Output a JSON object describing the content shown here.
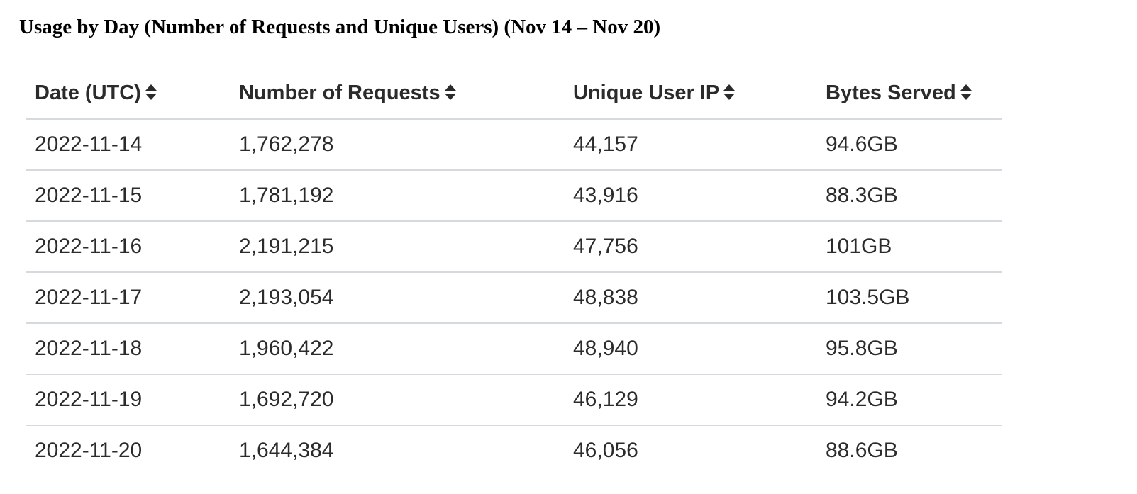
{
  "title": "Usage by Day (Number of Requests and Unique Users) (Nov 14 – Nov 20)",
  "table": {
    "headers": [
      "Date (UTC)",
      "Number of Requests",
      "Unique User IP",
      "Bytes Served"
    ],
    "sort_icon": "sort-up-down-icon",
    "rows": [
      [
        "2022-11-14",
        "1,762,278",
        "44,157",
        "94.6GB"
      ],
      [
        "2022-11-15",
        "1,781,192",
        "43,916",
        "88.3GB"
      ],
      [
        "2022-11-16",
        "2,191,215",
        "47,756",
        "101GB"
      ],
      [
        "2022-11-17",
        "2,193,054",
        "48,838",
        "103.5GB"
      ],
      [
        "2022-11-18",
        "1,960,422",
        "48,940",
        "95.8GB"
      ],
      [
        "2022-11-19",
        "1,692,720",
        "46,129",
        "94.2GB"
      ],
      [
        "2022-11-20",
        "1,644,384",
        "46,056",
        "88.6GB"
      ]
    ]
  },
  "colors": {
    "text": "#2b2b2b",
    "row_divider": "#d5d9e0",
    "title": "#000000"
  }
}
